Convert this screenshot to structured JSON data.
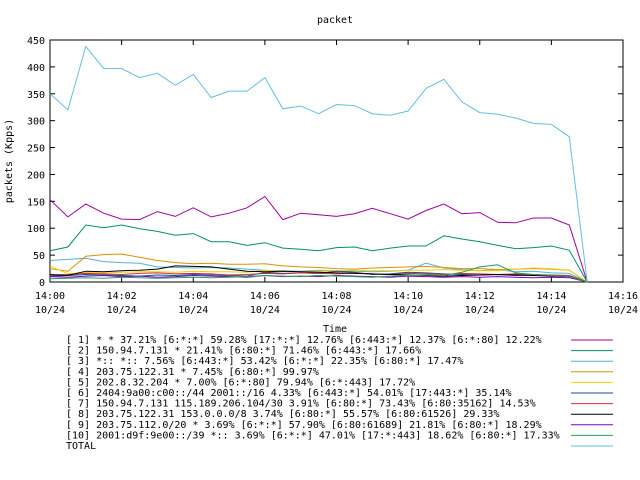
{
  "chart_data": {
    "type": "line",
    "title": "packet",
    "xlabel": "Time",
    "ylabel": "packets (Kpps)",
    "ylim": [
      0,
      450
    ],
    "yticks": [
      0,
      50,
      100,
      150,
      200,
      250,
      300,
      350,
      400,
      450
    ],
    "xrange_minutes": [
      0,
      16
    ],
    "xticks": [
      {
        "time": "14:00",
        "date": "10/24"
      },
      {
        "time": "14:02",
        "date": "10/24"
      },
      {
        "time": "14:04",
        "date": "10/24"
      },
      {
        "time": "14:06",
        "date": "10/24"
      },
      {
        "time": "14:08",
        "date": "10/24"
      },
      {
        "time": "14:10",
        "date": "10/24"
      },
      {
        "time": "14:12",
        "date": "10/24"
      },
      {
        "time": "14:14",
        "date": "10/24"
      },
      {
        "time": "14:16",
        "date": "10/24"
      }
    ],
    "grid": false,
    "legend_position": "bottom",
    "x_minutes": [
      0,
      0.5,
      1,
      1.5,
      2,
      2.5,
      3,
      3.5,
      4,
      4.5,
      5,
      5.5,
      6,
      6.5,
      7,
      7.5,
      8,
      8.5,
      9,
      9.5,
      10,
      10.5,
      11,
      11.5,
      12,
      12.5,
      13,
      13.5,
      14,
      14.5,
      15
    ],
    "series": [
      {
        "name": "[ 1] * * 37.21%  [6:*:*] 59.28% [17:*:*] 12.76% [6:443:*] 12.37% [6:*:80] 12.22%",
        "color": "#a000a0",
        "values": [
          153,
          121,
          145,
          128,
          117,
          116,
          131,
          122,
          138,
          121,
          128,
          138,
          159,
          116,
          128,
          125,
          122,
          127,
          137,
          127,
          117,
          133,
          145,
          127,
          129,
          111,
          110,
          119,
          119,
          106,
          0
        ]
      },
      {
        "name": "[ 2] 150.94.7.131 * 21.41%  [6:80:*] 71.46% [6:443:*] 17.66%",
        "color": "#009070",
        "values": [
          58,
          65,
          106,
          101,
          106,
          99,
          94,
          87,
          90,
          75,
          75,
          68,
          73,
          63,
          61,
          58,
          64,
          65,
          58,
          63,
          67,
          67,
          86,
          80,
          75,
          68,
          62,
          64,
          67,
          59,
          0
        ]
      },
      {
        "name": "[ 3] *:: *:: 7.56%  [6:443:*] 53.42% [6:*:*] 22.35% [6:80:*] 17.47%",
        "color": "#55b0e0",
        "values": [
          40,
          42,
          44,
          38,
          36,
          35,
          28,
          27,
          26,
          27,
          26,
          24,
          22,
          21,
          20,
          22,
          21,
          20,
          19,
          20,
          22,
          35,
          26,
          23,
          21,
          23,
          19,
          20,
          17,
          16,
          0
        ]
      },
      {
        "name": "[ 4] 203.75.122.31 * 7.45%  [6:80:*] 99.97%",
        "color": "#e09000",
        "values": [
          25,
          20,
          48,
          51,
          52,
          46,
          40,
          36,
          34,
          35,
          33,
          33,
          34,
          30,
          28,
          27,
          25,
          24,
          26,
          27,
          28,
          29,
          27,
          25,
          25,
          23,
          24,
          25,
          24,
          22,
          0
        ]
      },
      {
        "name": "[ 5] 202.8.32.204 * 7.00%  [6:*:80] 79.94% [6:*:443] 17.72%",
        "color": "#f0d000",
        "values": [
          30,
          15,
          18,
          17,
          18,
          19,
          19,
          18,
          20,
          19,
          19,
          18,
          22,
          20,
          19,
          20,
          21,
          22,
          21,
          21,
          22,
          22,
          23,
          22,
          21,
          21,
          24,
          26,
          25,
          22,
          0
        ]
      },
      {
        "name": "[ 6] 2404:9a00:c00::/44 2001::/16 4.33%  [6:443:*] 54.01% [17:443:*] 35.14%",
        "color": "#1050a0",
        "values": [
          11,
          12,
          14,
          13,
          12,
          11,
          13,
          12,
          14,
          13,
          12,
          11,
          18,
          16,
          17,
          16,
          20,
          18,
          14,
          15,
          18,
          17,
          15,
          14,
          13,
          14,
          12,
          13,
          12,
          11,
          0
        ]
      },
      {
        "name": "[ 7] 150.94.7.131 115.189.206.104/30 3.91%  [6:80:*] 73.43% [6:80:35162] 14.53%",
        "color": "#d03030",
        "values": [
          13,
          14,
          16,
          15,
          14,
          16,
          17,
          15,
          16,
          15,
          13,
          14,
          16,
          15,
          17,
          16,
          15,
          17,
          15,
          14,
          16,
          15,
          14,
          16,
          15,
          14,
          15,
          14,
          13,
          12,
          0
        ]
      },
      {
        "name": "[ 8] 203.75.122.31 153.0.0.0/8 3.74%  [6:80:*] 55.57% [6:80:61526] 29.33%",
        "color": "#000000",
        "values": [
          14,
          12,
          20,
          19,
          21,
          22,
          24,
          30,
          29,
          28,
          24,
          20,
          19,
          20,
          19,
          18,
          17,
          16,
          15,
          14,
          13,
          12,
          11,
          12,
          13,
          14,
          13,
          12,
          11,
          10,
          0
        ]
      },
      {
        "name": "[ 9] 203.75.112.0/20 * 3.69%  [6:*:*] 57.90% [6:80:61689] 21.81% [6:80:*] 18.29%",
        "color": "#8000c0",
        "values": [
          10,
          9,
          11,
          12,
          10,
          11,
          9,
          10,
          12,
          11,
          10,
          9,
          12,
          10,
          11,
          10,
          12,
          11,
          10,
          9,
          11,
          10,
          9,
          10,
          9,
          10,
          9,
          8,
          9,
          8,
          0
        ]
      },
      {
        "name": "[10] 2001:d9f:9e00::/39 *:: 3.69%  [6:*:*] 47.01% [17:*:443] 18.62% [6:80:*] 17.33%",
        "color": "#20a060",
        "values": [
          6,
          7,
          8,
          7,
          9,
          8,
          7,
          8,
          9,
          8,
          9,
          10,
          12,
          11,
          10,
          12,
          11,
          10,
          9,
          11,
          12,
          13,
          12,
          18,
          28,
          32,
          17,
          14,
          12,
          10,
          0
        ]
      },
      {
        "name": "TOTAL",
        "color": "#60c0e0",
        "values": [
          350,
          320,
          438,
          397,
          397,
          380,
          388,
          366,
          386,
          343,
          355,
          355,
          380,
          322,
          327,
          313,
          330,
          328,
          313,
          310,
          318,
          360,
          377,
          335,
          315,
          312,
          305,
          295,
          293,
          270,
          0
        ]
      }
    ]
  }
}
